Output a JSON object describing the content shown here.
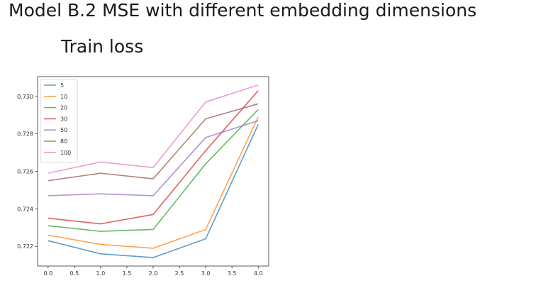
{
  "page": {
    "title": "Model B.2 MSE with different embedding dimensions",
    "subtitle": "Train loss"
  },
  "chart_data": {
    "type": "line",
    "title": "",
    "xlabel": "",
    "ylabel": "",
    "x": [
      0,
      1,
      2,
      3,
      4
    ],
    "xlim": [
      -0.2,
      4.2
    ],
    "ylim": [
      0.72095,
      0.73105
    ],
    "x_ticks": [
      0.0,
      0.5,
      1.0,
      1.5,
      2.0,
      2.5,
      3.0,
      3.5,
      4.0
    ],
    "x_tick_labels": [
      "0.0",
      "0.5",
      "1.0",
      "1.5",
      "2.0",
      "2.5",
      "3.0",
      "3.5",
      "4.0"
    ],
    "y_ticks": [
      0.722,
      0.724,
      0.726,
      0.728,
      0.73
    ],
    "y_tick_labels": [
      "0.722",
      "0.724",
      "0.726",
      "0.728",
      "0.730"
    ],
    "grid": false,
    "legend_position": "upper-left",
    "series": [
      {
        "name": "5",
        "color": "#1f77b4",
        "values": [
          0.7223,
          0.7216,
          0.7214,
          0.7224,
          0.7285
        ]
      },
      {
        "name": "10",
        "color": "#ff7f0e",
        "values": [
          0.7226,
          0.7221,
          0.7219,
          0.7229,
          0.7289
        ]
      },
      {
        "name": "20",
        "color": "#2ca02c",
        "values": [
          0.7231,
          0.7228,
          0.7229,
          0.7264,
          0.7293
        ]
      },
      {
        "name": "30",
        "color": "#d62728",
        "values": [
          0.7235,
          0.7232,
          0.7237,
          0.7271,
          0.7303
        ]
      },
      {
        "name": "50",
        "color": "#9467bd",
        "values": [
          0.7247,
          0.7248,
          0.7247,
          0.7278,
          0.7287
        ]
      },
      {
        "name": "80",
        "color": "#8c564b",
        "values": [
          0.7255,
          0.7259,
          0.7256,
          0.7288,
          0.7296
        ]
      },
      {
        "name": "100",
        "color": "#e377c2",
        "values": [
          0.7259,
          0.7265,
          0.7262,
          0.7297,
          0.7306
        ]
      }
    ]
  }
}
